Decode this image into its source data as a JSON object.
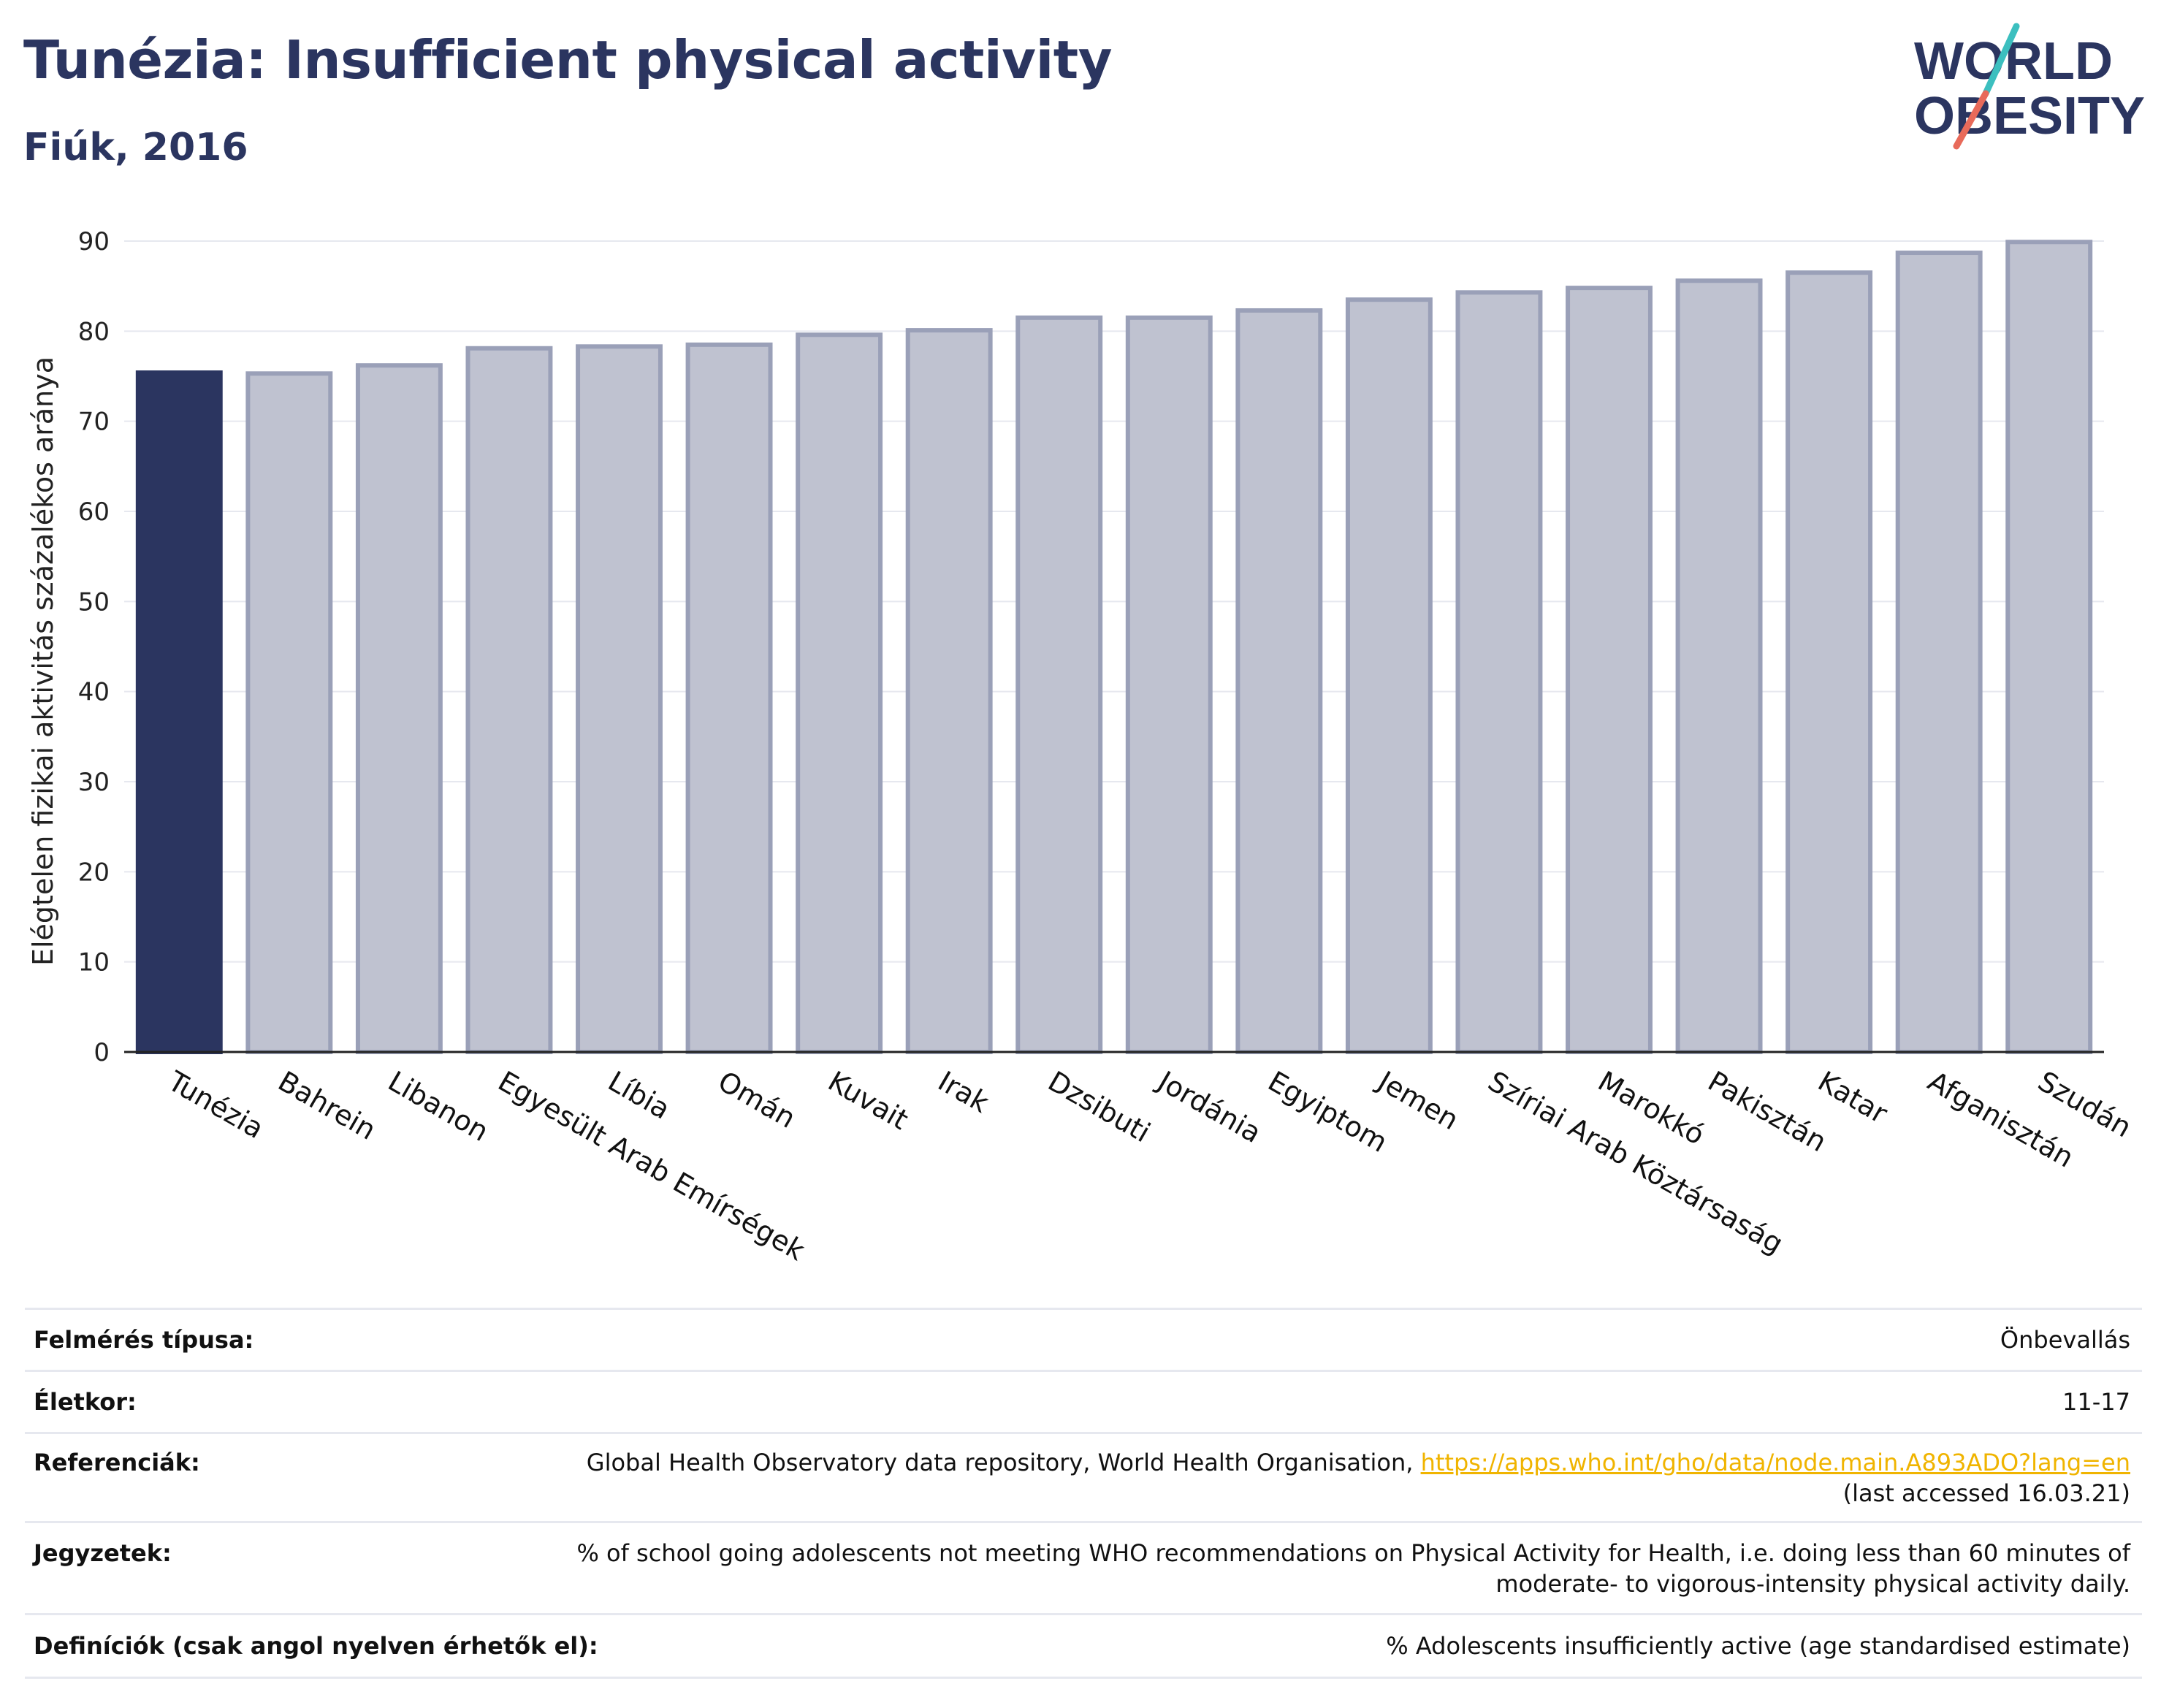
{
  "header": {
    "title": "Tunézia: Insufficient physical activity",
    "subtitle": "Fiúk, 2016"
  },
  "logo": {
    "line1": "WORLD",
    "line2": "OBESITY",
    "colors": {
      "text": "#2b3560",
      "slash_teal": "#3cbfbf",
      "slash_red": "#e86a5a"
    }
  },
  "chart_data": {
    "type": "bar",
    "ylabel": "Elégtelen fizikai aktivitás százalékos aránya",
    "xlabel": "",
    "ylim": [
      0,
      90
    ],
    "yticks": [
      0,
      10,
      20,
      30,
      40,
      50,
      60,
      70,
      80,
      90
    ],
    "grid": true,
    "highlight_index": 0,
    "colors": {
      "highlight": "#2b3560",
      "bar": "#bfc2d0",
      "bar_edge": "#9aa0b8",
      "grid": "#e6e8ef"
    },
    "categories": [
      "Tunézia",
      "Bahrein",
      "Libanon",
      "Egyesült Arab Emírségek",
      "Líbia",
      "Omán",
      "Kuvait",
      "Irak",
      "Dzsibuti",
      "Jordánia",
      "Egyiptom",
      "Jemen",
      "Szíriai Arab Köztársaság",
      "Marokkó",
      "Pakisztán",
      "Katar",
      "Afganisztán",
      "Szudán"
    ],
    "values": [
      75.4,
      75.3,
      76.2,
      78.1,
      78.3,
      78.5,
      79.6,
      80.1,
      81.5,
      81.5,
      82.3,
      83.5,
      84.3,
      84.8,
      85.6,
      86.5,
      88.7,
      89.9
    ]
  },
  "info": {
    "rows": [
      {
        "label": "Felmérés típusa:",
        "value": "Önbevallás"
      },
      {
        "label": "Életkor:",
        "value": "11-17"
      },
      {
        "label": "Referenciák:",
        "value": "Global Health Observatory data repository, World Health Organisation, ",
        "link": "https://apps.who.int/gho/data/node.main.A893ADO?lang=en",
        "value2": "(last accessed 16.03.21)"
      },
      {
        "label": "Jegyzetek:",
        "value": "% of school going adolescents not meeting WHO recommendations on Physical Activity for Health, i.e. doing less than 60 minutes of",
        "value2": "moderate- to vigorous-intensity physical activity daily."
      },
      {
        "label": "Definíciók (csak angol nyelven érhetők el):",
        "value": "% Adolescents insufficiently active (age standardised estimate)"
      }
    ]
  }
}
